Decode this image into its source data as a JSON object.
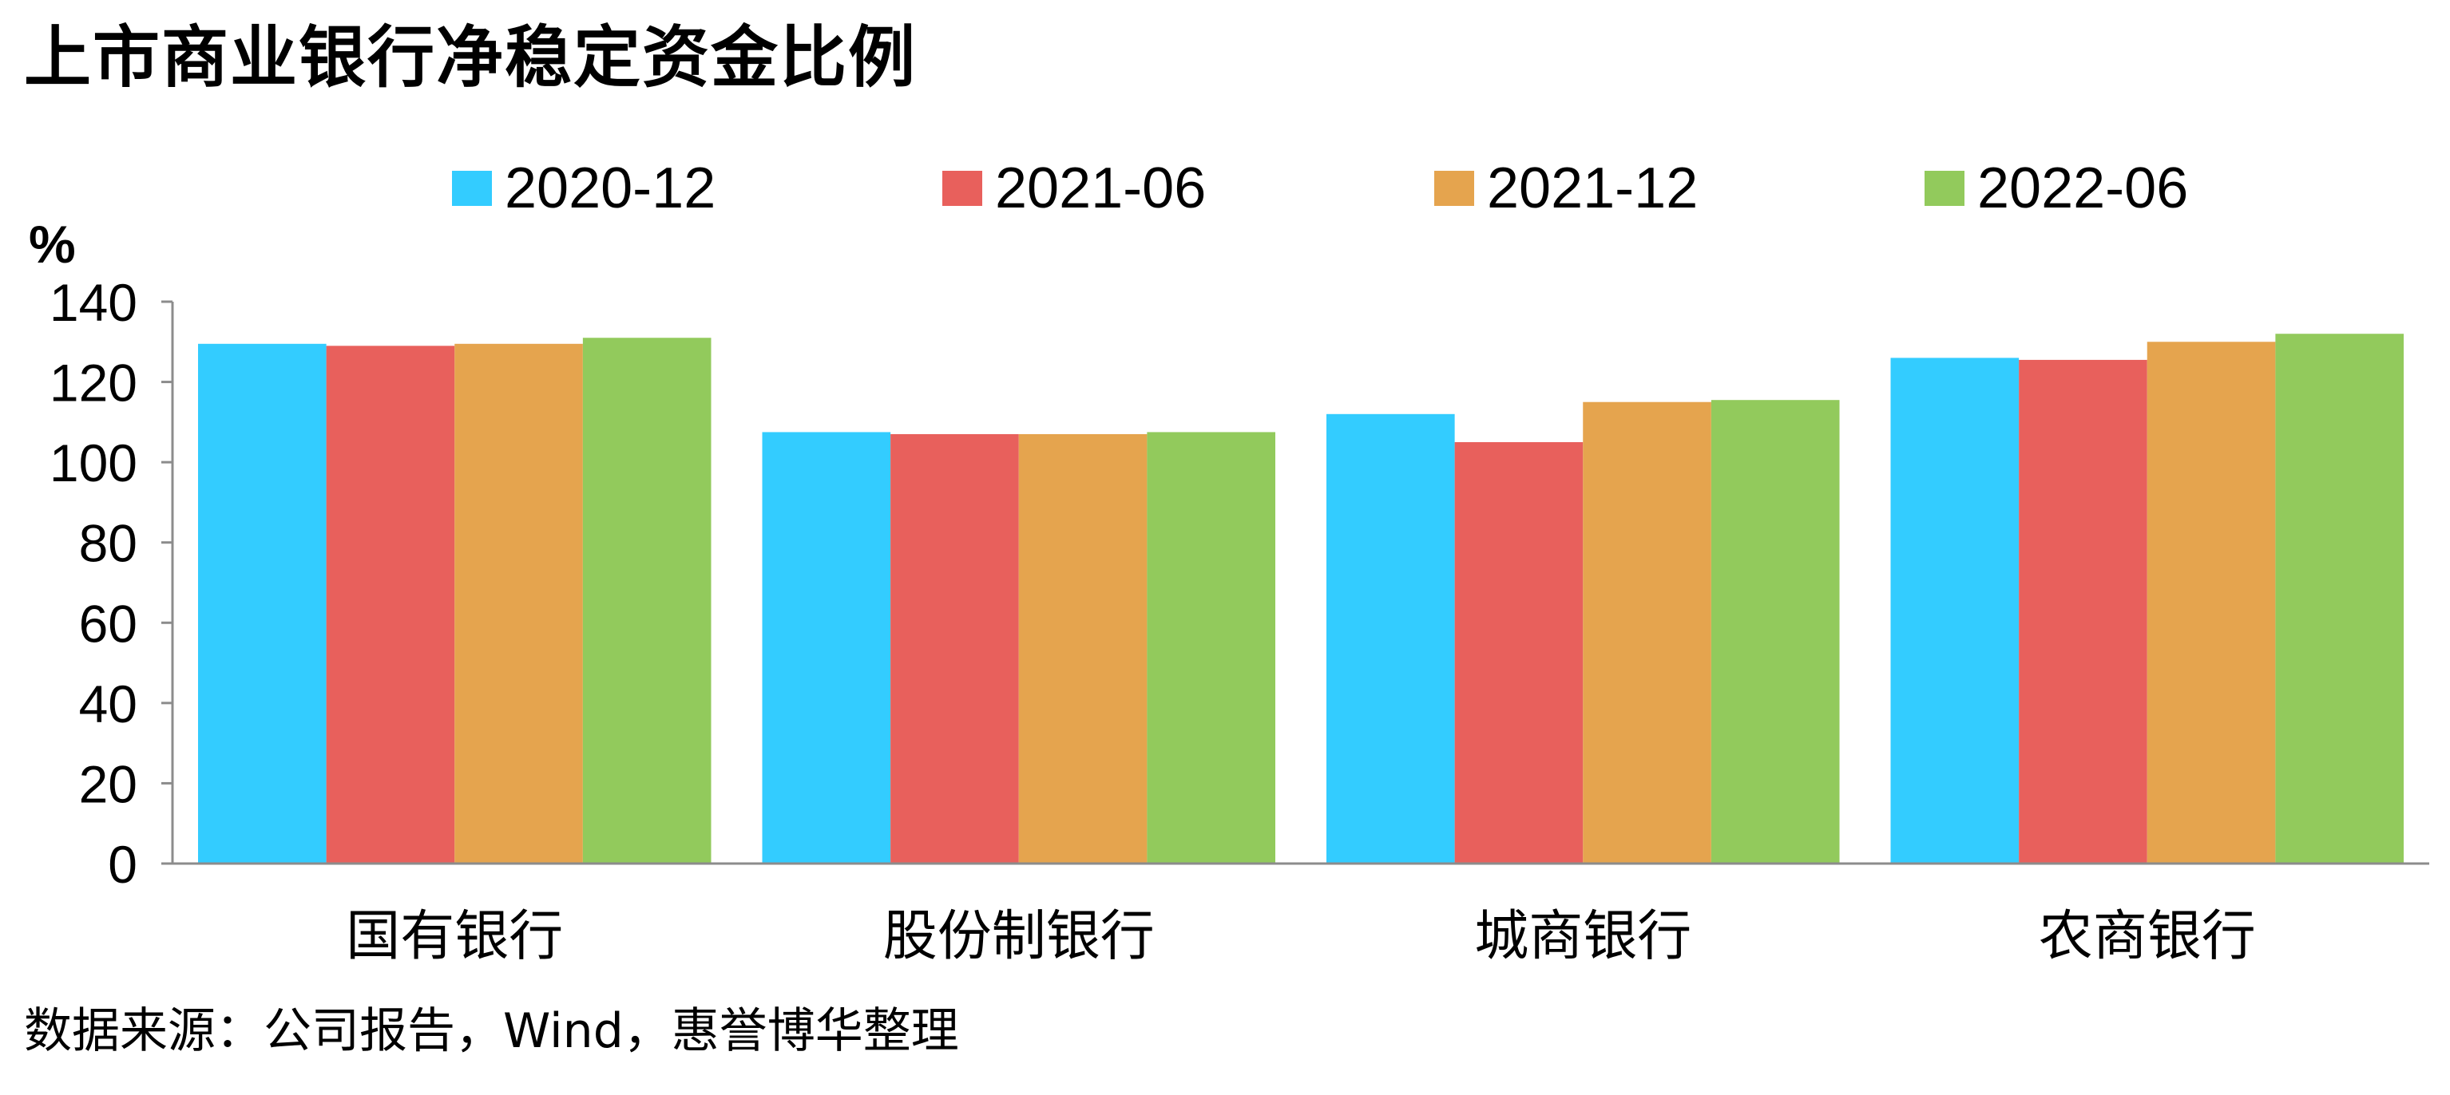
{
  "title": "上市商业银行净稳定资金比例",
  "source": "数据来源：公司报告，Wind，惠誉博华整理",
  "chart_data": {
    "type": "bar",
    "title": "上市商业银行净稳定资金比例",
    "unit_label": "%",
    "categories": [
      "国有银行",
      "股份制银行",
      "城商银行",
      "农商银行"
    ],
    "series": [
      {
        "name": "2020-12",
        "color": "#33CCFF",
        "values": [
          129.5,
          107.5,
          112,
          126
        ]
      },
      {
        "name": "2021-06",
        "color": "#E8605C",
        "values": [
          129,
          107,
          105,
          125.5
        ]
      },
      {
        "name": "2021-12",
        "color": "#E5A44E",
        "values": [
          129.5,
          107,
          115,
          130
        ]
      },
      {
        "name": "2022-06",
        "color": "#92CA5C",
        "values": [
          131,
          107.5,
          115.5,
          132
        ]
      }
    ],
    "ylim": [
      0,
      140
    ],
    "yticks": [
      0,
      20,
      40,
      60,
      80,
      100,
      120,
      140
    ],
    "legend_position": "top",
    "grid": false
  }
}
